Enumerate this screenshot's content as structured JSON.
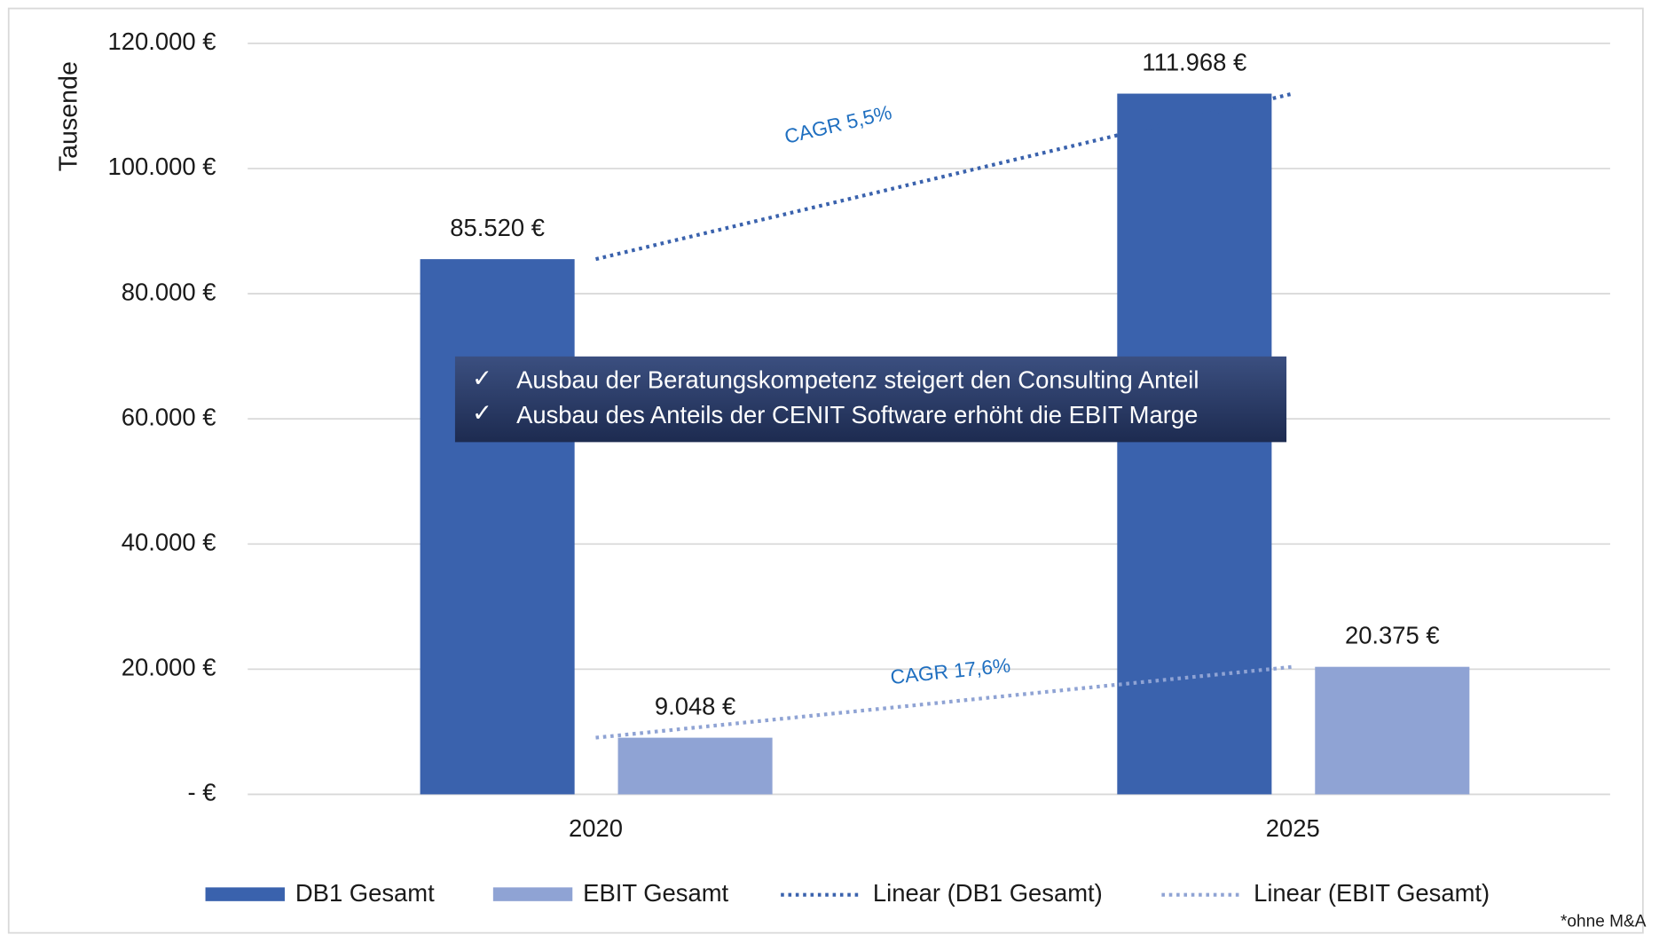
{
  "chart_data": {
    "type": "bar",
    "y_axis_label": "Tausende",
    "categories": [
      "2020",
      "2025"
    ],
    "series": [
      {
        "name": "DB1 Gesamt",
        "color": "#3a62ad",
        "values": [
          85520,
          111968
        ],
        "value_labels": [
          "85.520 €",
          "111.968 €"
        ]
      },
      {
        "name": "EBIT Gesamt",
        "color": "#8fa3d4",
        "values": [
          9048,
          20375
        ],
        "value_labels": [
          "9.048 €",
          "20.375 €"
        ]
      }
    ],
    "trendlines": [
      {
        "name": "Linear (DB1 Gesamt)",
        "series": 0,
        "color": "#3a62ad",
        "annotation": "CAGR 5,5%"
      },
      {
        "name": "Linear (EBIT Gesamt)",
        "series": 1,
        "color": "#8fa3d4",
        "annotation": "CAGR 17,6%"
      }
    ],
    "ylim": [
      0,
      120000
    ],
    "yticks": [
      {
        "value": 0,
        "label": "-   €"
      },
      {
        "value": 20000,
        "label": "20.000 €"
      },
      {
        "value": 40000,
        "label": "40.000 €"
      },
      {
        "value": 60000,
        "label": "60.000 €"
      },
      {
        "value": 80000,
        "label": "80.000 €"
      },
      {
        "value": 100000,
        "label": "100.000 €"
      },
      {
        "value": 120000,
        "label": "120.000 €"
      }
    ],
    "grid": true,
    "legend": "bottom",
    "textbox": [
      "Ausbau der Beratungskompetenz steigert den Consulting Anteil",
      "Ausbau des Anteils der CENIT Software erhöht die EBIT Marge"
    ],
    "footnote": "*ohne M&A"
  }
}
